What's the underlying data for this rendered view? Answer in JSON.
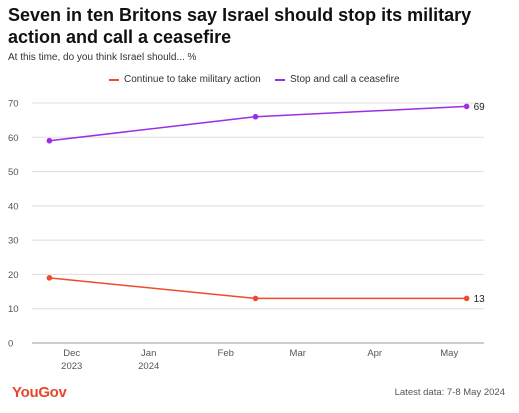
{
  "header": {
    "title": "Seven in ten Britons say Israel should stop its military action and call a ceasefire",
    "subtitle": "At this time, do you think Israel should... %"
  },
  "legend": [
    {
      "label": "Continue to take military action",
      "color": "#f04a2d"
    },
    {
      "label": "Stop and call a ceasefire",
      "color": "#9b2ee6"
    }
  ],
  "chart_data": {
    "type": "line",
    "title": "Seven in ten Britons say Israel should stop its military action and call a ceasefire",
    "subtitle": "At this time, do you think Israel should... %",
    "x": [
      "2023-11-22",
      "2024-02-13",
      "2024-05-08"
    ],
    "series": [
      {
        "name": "Continue to take military action",
        "color": "#f04a2d",
        "values": [
          19,
          13,
          13
        ],
        "end_label": "13"
      },
      {
        "name": "Stop and call a ceasefire",
        "color": "#9b2ee6",
        "values": [
          59,
          66,
          69
        ],
        "end_label": "69"
      }
    ],
    "xlim": [
      "2023-11-15",
      "2024-05-15"
    ],
    "ylim": [
      0,
      70
    ],
    "y_ticks": [
      0,
      10,
      20,
      30,
      40,
      50,
      60,
      70
    ],
    "x_ticks": [
      {
        "date": "2023-12-01",
        "label": "Dec",
        "sublabel": "2023"
      },
      {
        "date": "2024-01-01",
        "label": "Jan",
        "sublabel": "2024"
      },
      {
        "date": "2024-02-01",
        "label": "Feb",
        "sublabel": ""
      },
      {
        "date": "2024-03-01",
        "label": "Mar",
        "sublabel": ""
      },
      {
        "date": "2024-04-01",
        "label": "Apr",
        "sublabel": ""
      },
      {
        "date": "2024-05-01",
        "label": "May",
        "sublabel": ""
      }
    ],
    "grid": true,
    "legend_position": "top-center"
  },
  "footer": {
    "brand": "YouGov",
    "note": "Latest data: 7-8 May 2024"
  }
}
